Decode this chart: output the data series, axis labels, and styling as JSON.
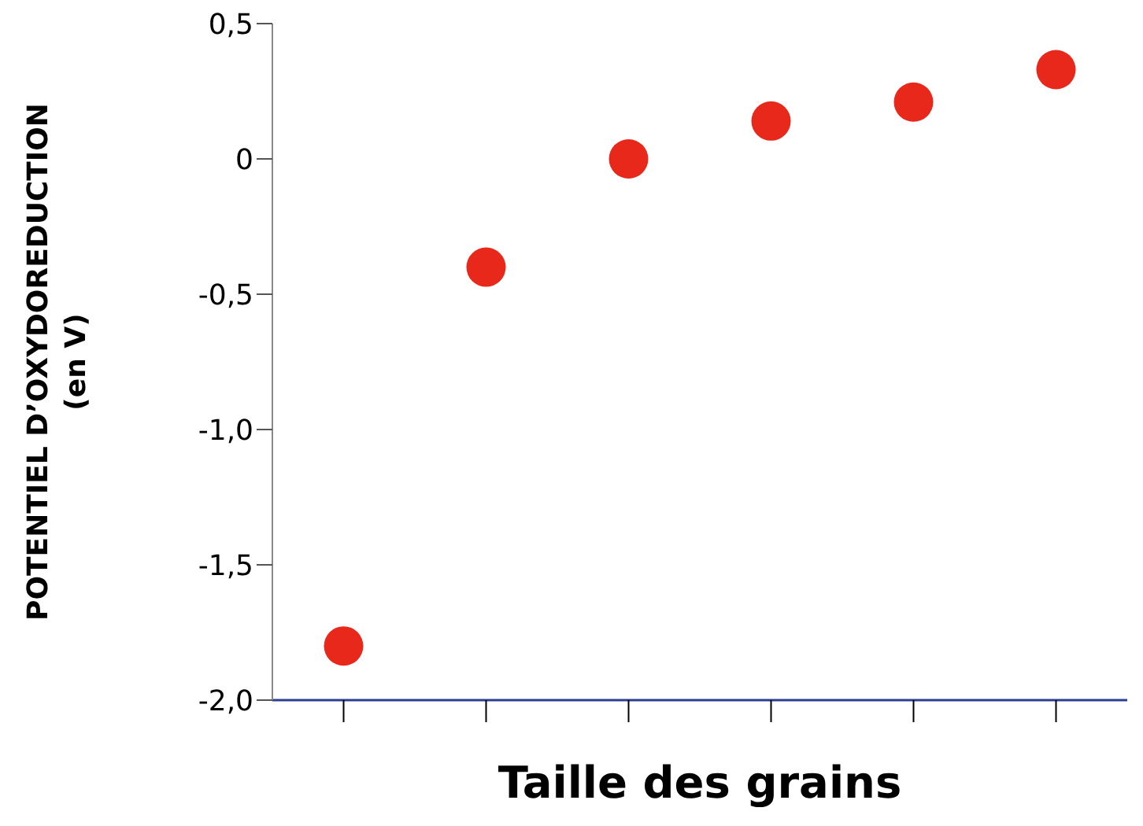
{
  "chart_data": {
    "type": "scatter",
    "xlabel": "Taille des grains",
    "ylabel": "POTENTIEL D’OXYDOREDUCTION (en V)",
    "categories": [
      null,
      null,
      null,
      null,
      null,
      null
    ],
    "values": [
      -1.8,
      -0.4,
      0.0,
      0.14,
      0.21,
      0.33
    ],
    "color": "#e8281a",
    "marker": "circle",
    "ylim": [
      -2,
      0.5
    ],
    "yticks": [
      {
        "value": -2,
        "label": "-2,0"
      },
      {
        "value": -1.5,
        "label": "-1,5"
      },
      {
        "value": -1,
        "label": "-1,0"
      },
      {
        "value": -0.5,
        "label": "-0,5"
      },
      {
        "value": 0,
        "label": "0"
      },
      {
        "value": 0.5,
        "label": "0,5"
      }
    ],
    "grid": false,
    "legend": false
  }
}
